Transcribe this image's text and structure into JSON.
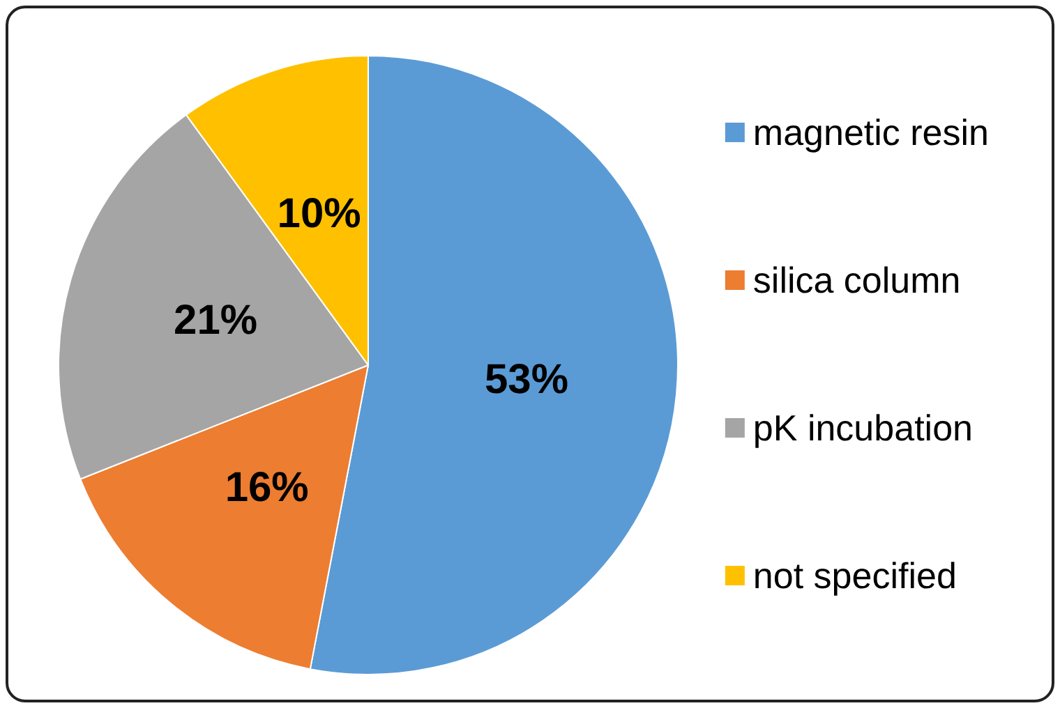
{
  "chart_data": {
    "type": "pie",
    "categories": [
      "magnetic resin",
      "silica column",
      "pK incubation",
      "not specified"
    ],
    "values": [
      53,
      16,
      21,
      10
    ],
    "value_labels": [
      "53%",
      "16%",
      "21%",
      "10%"
    ],
    "colors": [
      "#5b9bd5",
      "#ed7d31",
      "#a5a5a5",
      "#ffc000"
    ],
    "legend": "right"
  }
}
